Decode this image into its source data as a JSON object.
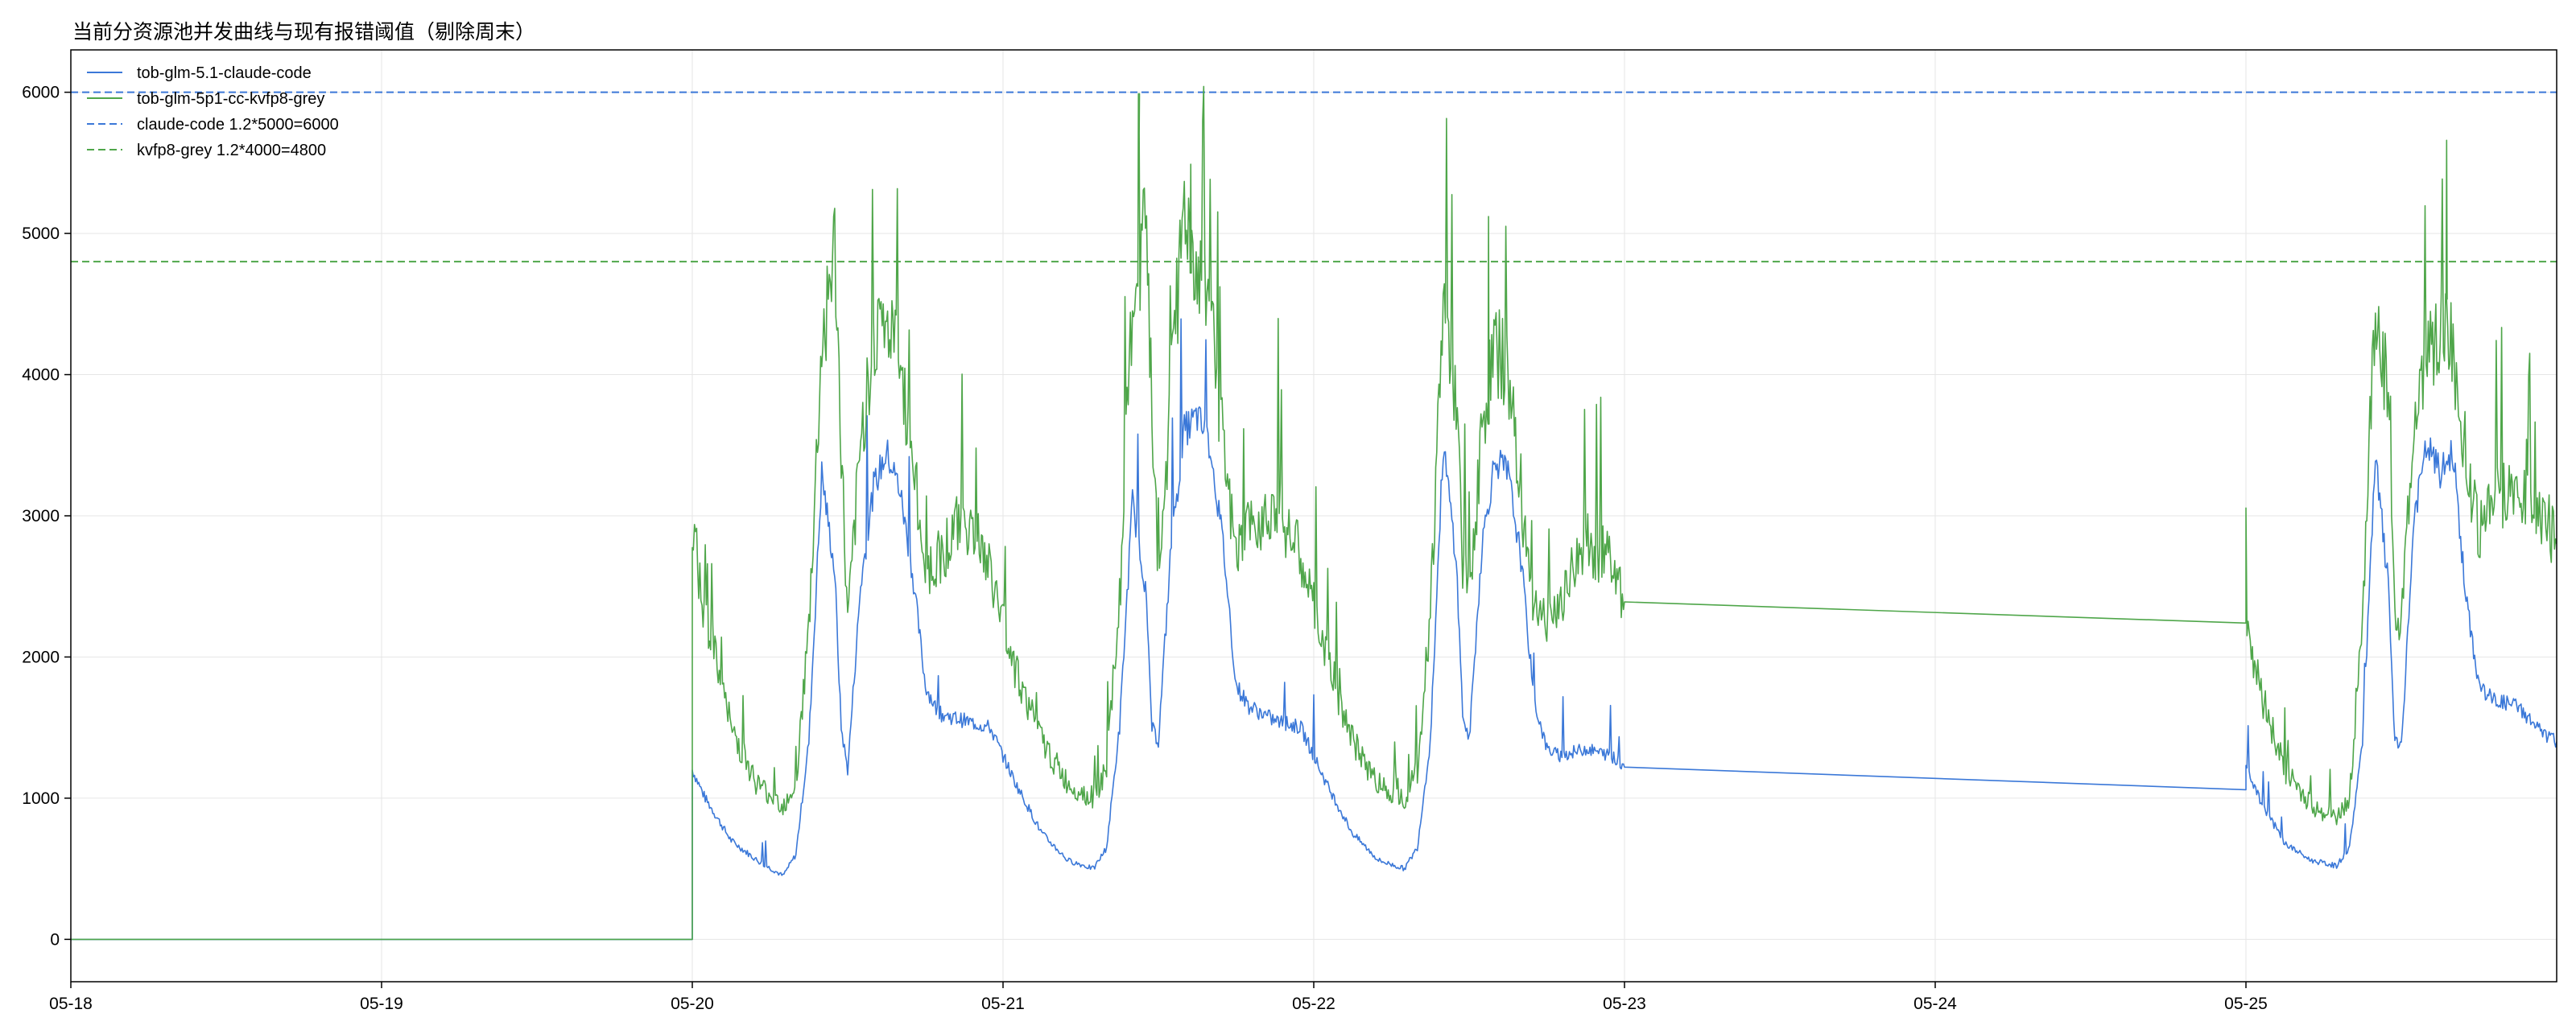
{
  "chart_data": {
    "type": "line",
    "title": "当前分资源池并发曲线与现有报错阈值（剔除周末）",
    "xlabel": "",
    "ylabel": "",
    "x_range": [
      "05-18 00:00",
      "05-26 00:00"
    ],
    "ylim": [
      -300,
      6300
    ],
    "x_ticks": [
      "05-18",
      "05-19",
      "05-20",
      "05-21",
      "05-22",
      "05-23",
      "05-24",
      "05-25"
    ],
    "y_ticks": [
      0,
      1000,
      2000,
      3000,
      4000,
      5000,
      6000
    ],
    "grid": true,
    "legend_position": "top-left",
    "series": [
      {
        "name": "tob-glm-5.1-claude-code",
        "color": "#3b78d8",
        "style": "solid",
        "points": [
          [
            "05-18 00:00",
            0
          ],
          [
            "05-20 00:00",
            0
          ],
          [
            "05-20 00:00",
            1200
          ],
          [
            "05-20 01:00",
            1000
          ],
          [
            "05-20 03:00",
            700
          ],
          [
            "05-20 05:00",
            560
          ],
          [
            "05-20 07:00",
            450
          ],
          [
            "05-20 08:00",
            600
          ],
          [
            "05-20 09:00",
            1400
          ],
          [
            "05-20 10:00",
            3300
          ],
          [
            "05-20 11:00",
            2600
          ],
          [
            "05-20 11:30",
            1500
          ],
          [
            "05-20 12:00",
            1200
          ],
          [
            "05-20 13:00",
            2500
          ],
          [
            "05-20 14:00",
            3200
          ],
          [
            "05-20 15:00",
            3450
          ],
          [
            "05-20 16:00",
            3200
          ],
          [
            "05-20 17:00",
            2600
          ],
          [
            "05-20 18:00",
            1800
          ],
          [
            "05-20 19:00",
            1600
          ],
          [
            "05-20 21:00",
            1550
          ],
          [
            "05-20 23:00",
            1500
          ],
          [
            "05-21 01:00",
            1100
          ],
          [
            "05-21 03:00",
            750
          ],
          [
            "05-21 05:00",
            560
          ],
          [
            "05-21 07:00",
            500
          ],
          [
            "05-21 08:00",
            650
          ],
          [
            "05-21 09:00",
            1500
          ],
          [
            "05-21 10:00",
            3100
          ],
          [
            "05-21 11:00",
            2500
          ],
          [
            "05-21 11:30",
            1500
          ],
          [
            "05-21 12:00",
            1400
          ],
          [
            "05-21 13:00",
            2800
          ],
          [
            "05-21 14:00",
            3600
          ],
          [
            "05-21 15:00",
            3700
          ],
          [
            "05-21 16:00",
            3500
          ],
          [
            "05-21 17:00",
            2800
          ],
          [
            "05-21 18:00",
            1800
          ],
          [
            "05-21 19:00",
            1650
          ],
          [
            "05-21 21:00",
            1550
          ],
          [
            "05-21 23:00",
            1500
          ],
          [
            "05-22 01:00",
            1100
          ],
          [
            "05-22 03:00",
            750
          ],
          [
            "05-22 05:00",
            560
          ],
          [
            "05-22 07:00",
            500
          ],
          [
            "05-22 08:00",
            650
          ],
          [
            "05-22 09:00",
            1400
          ],
          [
            "05-22 10:00",
            3500
          ],
          [
            "05-22 11:00",
            2700
          ],
          [
            "05-22 11:30",
            1600
          ],
          [
            "05-22 12:00",
            1400
          ],
          [
            "05-22 13:00",
            2800
          ],
          [
            "05-22 14:00",
            3400
          ],
          [
            "05-22 15:00",
            3300
          ],
          [
            "05-22 16:00",
            2700
          ],
          [
            "05-22 17:00",
            1700
          ],
          [
            "05-22 18:00",
            1350
          ],
          [
            "05-22 19:00",
            1300
          ],
          [
            "05-22 21:00",
            1350
          ],
          [
            "05-22 23:00",
            1300
          ],
          [
            "05-23 00:00",
            1220
          ],
          [
            "05-25 00:00",
            1060
          ],
          [
            "05-25 00:00",
            1250
          ],
          [
            "05-25 01:00",
            1000
          ],
          [
            "05-25 03:00",
            680
          ],
          [
            "05-25 05:00",
            560
          ],
          [
            "05-25 07:00",
            520
          ],
          [
            "05-25 08:00",
            650
          ],
          [
            "05-25 09:00",
            1400
          ],
          [
            "05-25 10:00",
            3400
          ],
          [
            "05-25 11:00",
            2500
          ],
          [
            "05-25 11:30",
            1400
          ],
          [
            "05-25 12:00",
            1350
          ],
          [
            "05-25 13:00",
            3000
          ],
          [
            "05-25 14:00",
            3500
          ],
          [
            "05-25 15:00",
            3300
          ],
          [
            "05-25 16:00",
            3450
          ],
          [
            "05-25 17:00",
            2400
          ],
          [
            "05-25 18:00",
            1800
          ],
          [
            "05-25 19:00",
            1700
          ],
          [
            "05-25 21:00",
            1650
          ],
          [
            "05-25 23:00",
            1450
          ],
          [
            "05-26 00:00",
            1400
          ]
        ]
      },
      {
        "name": "tob-glm-5p1-cc-kvfp8-grey",
        "color": "#4fa64a",
        "style": "solid",
        "points": [
          [
            "05-18 00:00",
            0
          ],
          [
            "05-20 00:00",
            0
          ],
          [
            "05-20 00:00",
            2900
          ],
          [
            "05-20 01:00",
            2300
          ],
          [
            "05-20 03:00",
            1500
          ],
          [
            "05-20 05:00",
            1100
          ],
          [
            "05-20 07:00",
            950
          ],
          [
            "05-20 08:00",
            1100
          ],
          [
            "05-20 09:00",
            2200
          ],
          [
            "05-20 10:00",
            4200
          ],
          [
            "05-20 11:00",
            4900
          ],
          [
            "05-20 11:30",
            3500
          ],
          [
            "05-20 12:00",
            2200
          ],
          [
            "05-20 13:00",
            3500
          ],
          [
            "05-20 14:00",
            4300
          ],
          [
            "05-20 15:00",
            4350
          ],
          [
            "05-20 16:00",
            4100
          ],
          [
            "05-20 17:00",
            3400
          ],
          [
            "05-20 18:00",
            2600
          ],
          [
            "05-20 19:00",
            2700
          ],
          [
            "05-20 21:00",
            3000
          ],
          [
            "05-20 23:00",
            2600
          ],
          [
            "05-21 01:00",
            1900
          ],
          [
            "05-21 03:00",
            1400
          ],
          [
            "05-21 05:00",
            1100
          ],
          [
            "05-21 07:00",
            1000
          ],
          [
            "05-21 08:00",
            1200
          ],
          [
            "05-21 09:00",
            2400
          ],
          [
            "05-21 10:00",
            4500
          ],
          [
            "05-21 11:00",
            5000
          ],
          [
            "05-21 11:30",
            3800
          ],
          [
            "05-21 12:00",
            2500
          ],
          [
            "05-21 13:00",
            3900
          ],
          [
            "05-21 14:00",
            5200
          ],
          [
            "05-21 15:00",
            4700
          ],
          [
            "05-21 16:00",
            4500
          ],
          [
            "05-21 17:00",
            3400
          ],
          [
            "05-21 18:00",
            2700
          ],
          [
            "05-21 19:00",
            2900
          ],
          [
            "05-21 21:00",
            3100
          ],
          [
            "05-21 23:00",
            2700
          ],
          [
            "05-22 01:00",
            2000
          ],
          [
            "05-22 03:00",
            1400
          ],
          [
            "05-22 05:00",
            1100
          ],
          [
            "05-22 07:00",
            1000
          ],
          [
            "05-22 08:00",
            1200
          ],
          [
            "05-22 09:00",
            2300
          ],
          [
            "05-22 10:00",
            4500
          ],
          [
            "05-22 11:00",
            3800
          ],
          [
            "05-22 11:30",
            2700
          ],
          [
            "05-22 12:00",
            2400
          ],
          [
            "05-22 13:00",
            3600
          ],
          [
            "05-22 14:00",
            4200
          ],
          [
            "05-22 15:00",
            4000
          ],
          [
            "05-22 16:00",
            3100
          ],
          [
            "05-22 17:00",
            2400
          ],
          [
            "05-22 18:00",
            2200
          ],
          [
            "05-22 19:00",
            2400
          ],
          [
            "05-22 21:00",
            2800
          ],
          [
            "05-22 23:00",
            2700
          ],
          [
            "05-23 00:00",
            2390
          ],
          [
            "05-25 00:00",
            2240
          ],
          [
            "05-25 00:00",
            2300
          ],
          [
            "05-25 01:00",
            1800
          ],
          [
            "05-25 03:00",
            1200
          ],
          [
            "05-25 05:00",
            950
          ],
          [
            "05-25 07:00",
            850
          ],
          [
            "05-25 08:00",
            1000
          ],
          [
            "05-25 09:00",
            2300
          ],
          [
            "05-25 10:00",
            4500
          ],
          [
            "05-25 11:00",
            3800
          ],
          [
            "05-25 11:30",
            2400
          ],
          [
            "05-25 12:00",
            2200
          ],
          [
            "05-25 13:00",
            3700
          ],
          [
            "05-25 14:00",
            4200
          ],
          [
            "05-25 15:00",
            4300
          ],
          [
            "05-25 16:00",
            4200
          ],
          [
            "05-25 17:00",
            3400
          ],
          [
            "05-25 18:00",
            2900
          ],
          [
            "05-25 19:00",
            3100
          ],
          [
            "05-25 21:00",
            3200
          ],
          [
            "05-25 23:00",
            3000
          ],
          [
            "05-26 00:00",
            2800
          ]
        ]
      }
    ],
    "spikes": [
      {
        "series": 1,
        "x": "05-21 10:30",
        "y": 5530
      },
      {
        "series": 1,
        "x": "05-21 14:30",
        "y": 5490
      },
      {
        "series": 1,
        "x": "05-22 13:30",
        "y": 5120
      },
      {
        "series": 1,
        "x": "05-25 15:30",
        "y": 5660
      }
    ],
    "reference_lines": [
      {
        "name": "claude-code 1.2*5000=6000",
        "y": 6000,
        "color": "#3b78d8",
        "style": "dashed"
      },
      {
        "name": "kvfp8-grey 1.2*4000=4800",
        "y": 4800,
        "color": "#4fa64a",
        "style": "dashed"
      }
    ]
  }
}
